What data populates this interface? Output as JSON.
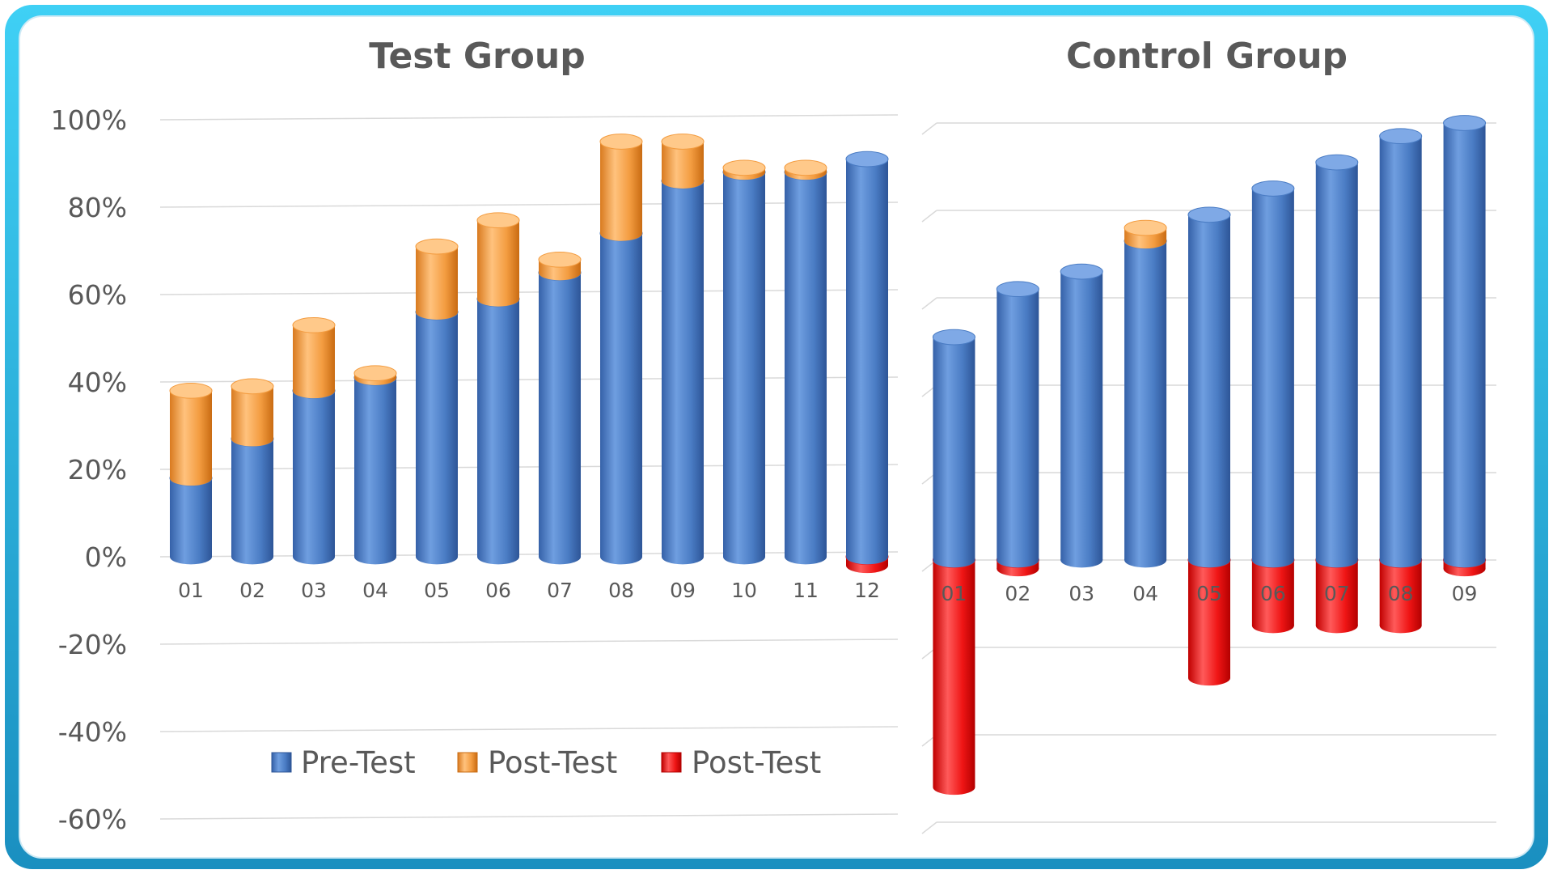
{
  "colors": {
    "pre": "#4a7cc4",
    "post_pos": "#f39c40",
    "post_neg": "#ef1515",
    "frame": "#1fb3e0"
  },
  "chart_data": [
    {
      "type": "bar",
      "stacked": true,
      "title": "Test Group",
      "categories": [
        "01",
        "02",
        "03",
        "04",
        "05",
        "06",
        "07",
        "08",
        "09",
        "10",
        "11",
        "12"
      ],
      "ylim": [
        -60,
        100
      ],
      "yticks": [
        "100%",
        "80%",
        "60%",
        "40%",
        "20%",
        "0%",
        "-20%",
        "-40%",
        "-60%"
      ],
      "grid": true,
      "series": [
        {
          "name": "Pre-Test",
          "values": [
            18,
            27,
            38,
            41,
            56,
            59,
            65,
            74,
            86,
            88,
            88,
            91
          ]
        },
        {
          "name": "Post-Test",
          "values": [
            20,
            12,
            15,
            1,
            15,
            18,
            3,
            21,
            9,
            1,
            1,
            0
          ]
        },
        {
          "name": "Post-Test",
          "values": [
            0,
            0,
            0,
            0,
            0,
            0,
            0,
            0,
            0,
            0,
            0,
            -2
          ]
        }
      ],
      "legend": "bottom"
    },
    {
      "type": "bar",
      "stacked": true,
      "title": "Control Group",
      "categories": [
        "01",
        "02",
        "03",
        "04",
        "05",
        "06",
        "07",
        "08",
        "09"
      ],
      "ylim": [
        -60,
        100
      ],
      "grid": true,
      "series": [
        {
          "name": "Pre-Test",
          "values": [
            51,
            62,
            66,
            73,
            79,
            85,
            91,
            97,
            100
          ]
        },
        {
          "name": "Post-Test",
          "values": [
            0,
            0,
            0,
            3,
            0,
            0,
            0,
            0,
            0
          ]
        },
        {
          "name": "Post-Test",
          "values": [
            -52,
            -2,
            0,
            0,
            -27,
            -15,
            -15,
            -15,
            -2
          ]
        }
      ]
    }
  ],
  "legend": [
    {
      "label": "Pre-Test"
    },
    {
      "label": "Post-Test"
    },
    {
      "label": "Post-Test"
    }
  ]
}
